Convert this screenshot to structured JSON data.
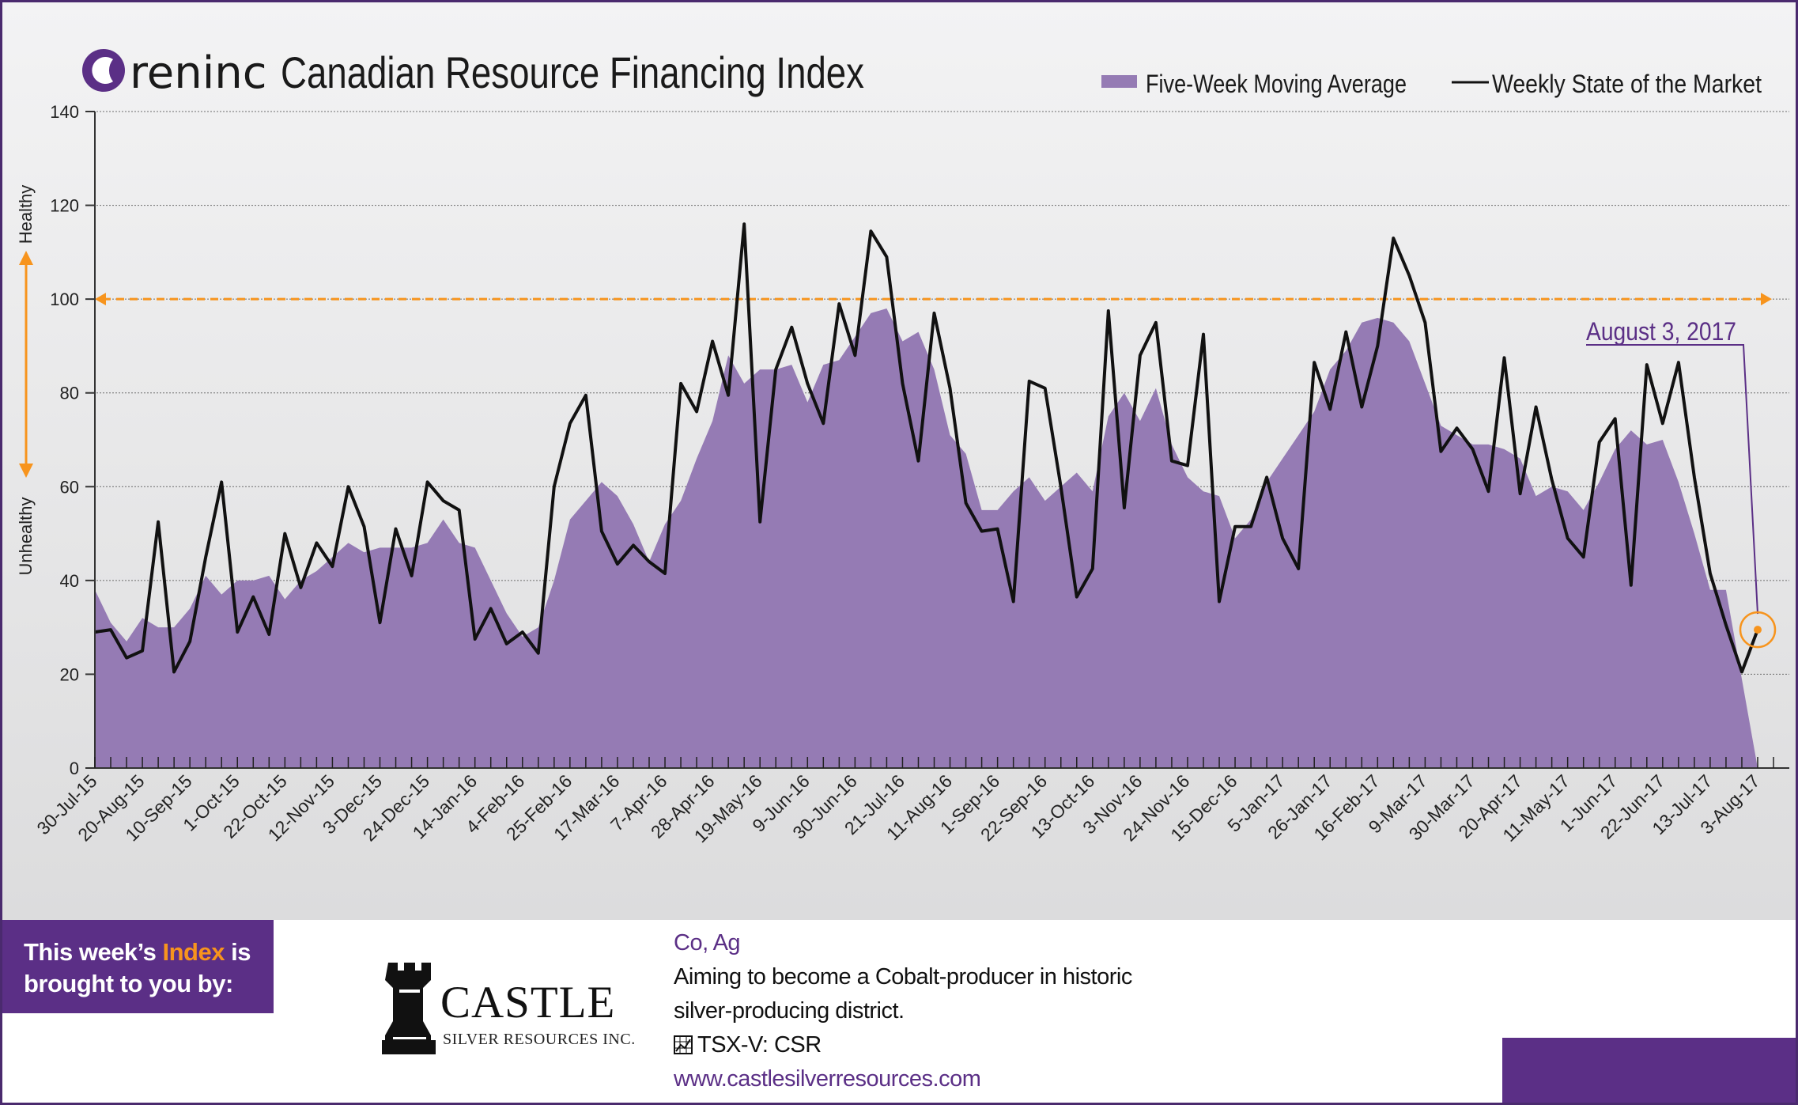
{
  "header": {
    "brand_logo_letter": "O",
    "brand_name": "reninc",
    "title": "Canadian Resource Financing Index"
  },
  "colors": {
    "area_fill": "#957bb4",
    "line": "#111111",
    "reference_line": "#f7941d",
    "brand_purple": "#5b2f86",
    "highlight_orange": "#f7941d"
  },
  "chart_data": {
    "type": "area+line",
    "title": "Canadian Resource Financing Index",
    "ylim": [
      0,
      140
    ],
    "yticks": [
      0,
      20,
      40,
      60,
      80,
      100,
      120,
      140
    ],
    "grid": true,
    "legend_position": "top-right",
    "x_tick_labels": [
      "30-Jul-15",
      "20-Aug-15",
      "10-Sep-15",
      "1-Oct-15",
      "22-Oct-15",
      "12-Nov-15",
      "3-Dec-15",
      "24-Dec-15",
      "14-Jan-16",
      "4-Feb-16",
      "25-Feb-16",
      "17-Mar-16",
      "7-Apr-16",
      "28-Apr-16",
      "19-May-16",
      "9-Jun-16",
      "30-Jun-16",
      "21-Jul-16",
      "11-Aug-16",
      "1-Sep-16",
      "22-Sep-16",
      "13-Oct-16",
      "3-Nov-16",
      "24-Nov-16",
      "15-Dec-16",
      "5-Jan-17",
      "26-Jan-17",
      "16-Feb-17",
      "9-Mar-17",
      "30-Mar-17",
      "20-Apr-17",
      "11-May-17",
      "1-Jun-17",
      "22-Jun-17",
      "13-Jul-17",
      "3-Aug-17"
    ],
    "series": [
      {
        "name": "Five-Week Moving Average",
        "kind": "area",
        "values": [
          38,
          31,
          27,
          32,
          30,
          30,
          34,
          41,
          37,
          40,
          40,
          41,
          36,
          40,
          42,
          45,
          48,
          46,
          47,
          47,
          47,
          48,
          53,
          48,
          47,
          40,
          33,
          28,
          30,
          40,
          53,
          57,
          61,
          58,
          52,
          44,
          52,
          57,
          66,
          74,
          88,
          82,
          85,
          85,
          86,
          78,
          86,
          87,
          92,
          97,
          98,
          91,
          93,
          85,
          71,
          67,
          55,
          55,
          59,
          62,
          57,
          60,
          63,
          59,
          75,
          80,
          74,
          81,
          69,
          62,
          59,
          58,
          49,
          53,
          61,
          66,
          71,
          76,
          85,
          89,
          95,
          96,
          95,
          91,
          82,
          73,
          71,
          69,
          69,
          68,
          66,
          58,
          60,
          59,
          55,
          61,
          68,
          72,
          69,
          70,
          61,
          50,
          38,
          38
        ]
      },
      {
        "name": "Weekly State of the Market",
        "kind": "line",
        "values": [
          29,
          29.5,
          23.5,
          25,
          52.5,
          20.5,
          27,
          45,
          61,
          29,
          36.5,
          28.5,
          50,
          38.5,
          48,
          43,
          60,
          51.5,
          31,
          51,
          41,
          61,
          57,
          55,
          27.5,
          34,
          26.5,
          29,
          24.5,
          60,
          73.5,
          79.5,
          50.5,
          43.5,
          47.5,
          44,
          41.5,
          82,
          76,
          91,
          79.5,
          116,
          52.5,
          85,
          94,
          82,
          73.5,
          99,
          88,
          114.5,
          109,
          82,
          65.5,
          97,
          81,
          56.5,
          50.5,
          51,
          35.5,
          82.5,
          81,
          60,
          36.5,
          42.5,
          97.5,
          55.5,
          88,
          95,
          65.5,
          64.5,
          92.5,
          35.5,
          51.5,
          51.5,
          62,
          49,
          42.5,
          86.5,
          76.5,
          93,
          77,
          90,
          113,
          105,
          95,
          67.5,
          72.5,
          68,
          59,
          87.5,
          58.5,
          77,
          61.5,
          49,
          45,
          69.5,
          74.5,
          39,
          86,
          73.5,
          86.5,
          62,
          41.5,
          30.5,
          20.5,
          29.5
        ]
      }
    ],
    "reference_line": {
      "value": 100
    },
    "axis_annotations": {
      "upper": "Healthy",
      "lower": "Unhealthy"
    },
    "callout": {
      "label": "August 3, 2017",
      "point_index": 105,
      "point_value": 29.5
    }
  },
  "footer": {
    "sponsor_prefix": "This week’s ",
    "sponsor_highlight": "Index",
    "sponsor_suffix_line1": " is",
    "sponsor_line2": "brought to you by:",
    "company_name": "CASTLE",
    "company_subtitle": "SILVER RESOURCES INC.",
    "commodities": "Co, Ag",
    "description_line1": "Aiming to become a Cobalt-producer in historic",
    "description_line2": "silver-producing district.",
    "ticker": "TSX-V:  CSR",
    "website": "www.castlesilverresources.com"
  }
}
